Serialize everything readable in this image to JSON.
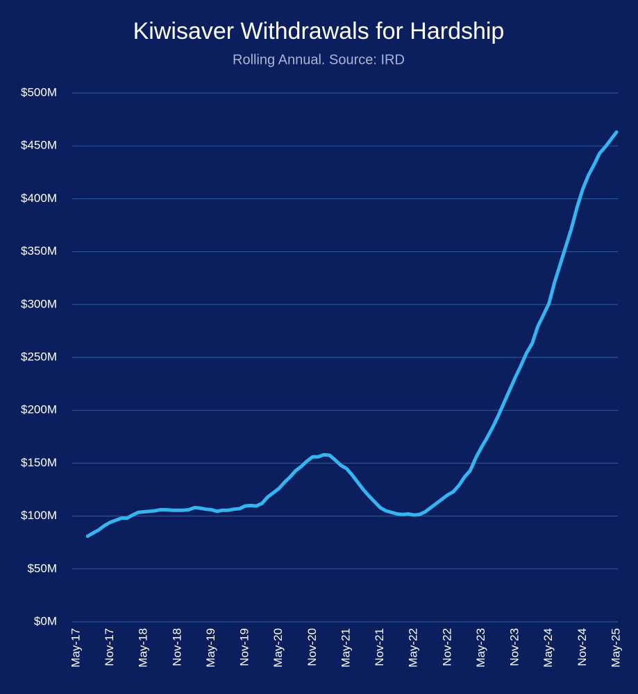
{
  "chart_data": {
    "type": "line",
    "title": "Kiwisaver Withdrawals for Hardship",
    "subtitle": "Rolling Annual. Source: IRD",
    "categories": [
      "May-17",
      null,
      null,
      null,
      null,
      null,
      "Nov-17",
      null,
      null,
      null,
      null,
      null,
      "May-18",
      null,
      null,
      null,
      null,
      null,
      "Nov-18",
      null,
      null,
      null,
      null,
      null,
      "May-19",
      null,
      null,
      null,
      null,
      null,
      "Nov-19",
      null,
      null,
      null,
      null,
      null,
      "May-20",
      null,
      null,
      null,
      null,
      null,
      "Nov-20",
      null,
      null,
      null,
      null,
      null,
      "May-21",
      null,
      null,
      null,
      null,
      null,
      "Nov-21",
      null,
      null,
      null,
      null,
      null,
      "May-22",
      null,
      null,
      null,
      null,
      null,
      "Nov-22",
      null,
      null,
      null,
      null,
      null,
      "May-23",
      null,
      null,
      null,
      null,
      null,
      "Nov-23",
      null,
      null,
      null,
      null,
      null,
      "May-24",
      null,
      null,
      null,
      null,
      null,
      "Nov-24",
      null,
      null,
      null,
      null,
      null,
      "May-25"
    ],
    "values": [
      null,
      null,
      81,
      84,
      87,
      91,
      94,
      96,
      98,
      98,
      101,
      103.5,
      104,
      104.5,
      105,
      106,
      106,
      105.5,
      105.5,
      105.5,
      106,
      108,
      107.5,
      106.5,
      106,
      104.5,
      105.5,
      105.5,
      106.5,
      107,
      109.5,
      110,
      109.5,
      112,
      118,
      122,
      126,
      132,
      137,
      143,
      147,
      152,
      156,
      156,
      158,
      157.5,
      153,
      148,
      145,
      139,
      132,
      125,
      119,
      113.5,
      108,
      105,
      103.5,
      102,
      101.5,
      102,
      101,
      101.5,
      104,
      108,
      112,
      116,
      120,
      123,
      129,
      137,
      143,
      155,
      165,
      174,
      184,
      195,
      207,
      219,
      231,
      242,
      254,
      263,
      279,
      290,
      301,
      321,
      338,
      355,
      372,
      392,
      409,
      422,
      432,
      443,
      449,
      456,
      463
    ],
    "color": "#35b4f2",
    "ylim": [
      0,
      500
    ],
    "yticks": [
      {
        "value": 0,
        "label": "$0M"
      },
      {
        "value": 50,
        "label": "$50M"
      },
      {
        "value": 100,
        "label": "$100M"
      },
      {
        "value": 150,
        "label": "$150M"
      },
      {
        "value": 200,
        "label": "$200M"
      },
      {
        "value": 250,
        "label": "$250M"
      },
      {
        "value": 300,
        "label": "$300M"
      },
      {
        "value": 350,
        "label": "$350M"
      },
      {
        "value": 400,
        "label": "$400M"
      },
      {
        "value": 450,
        "label": "$450M"
      },
      {
        "value": 500,
        "label": "$500M"
      }
    ],
    "grid": true
  }
}
